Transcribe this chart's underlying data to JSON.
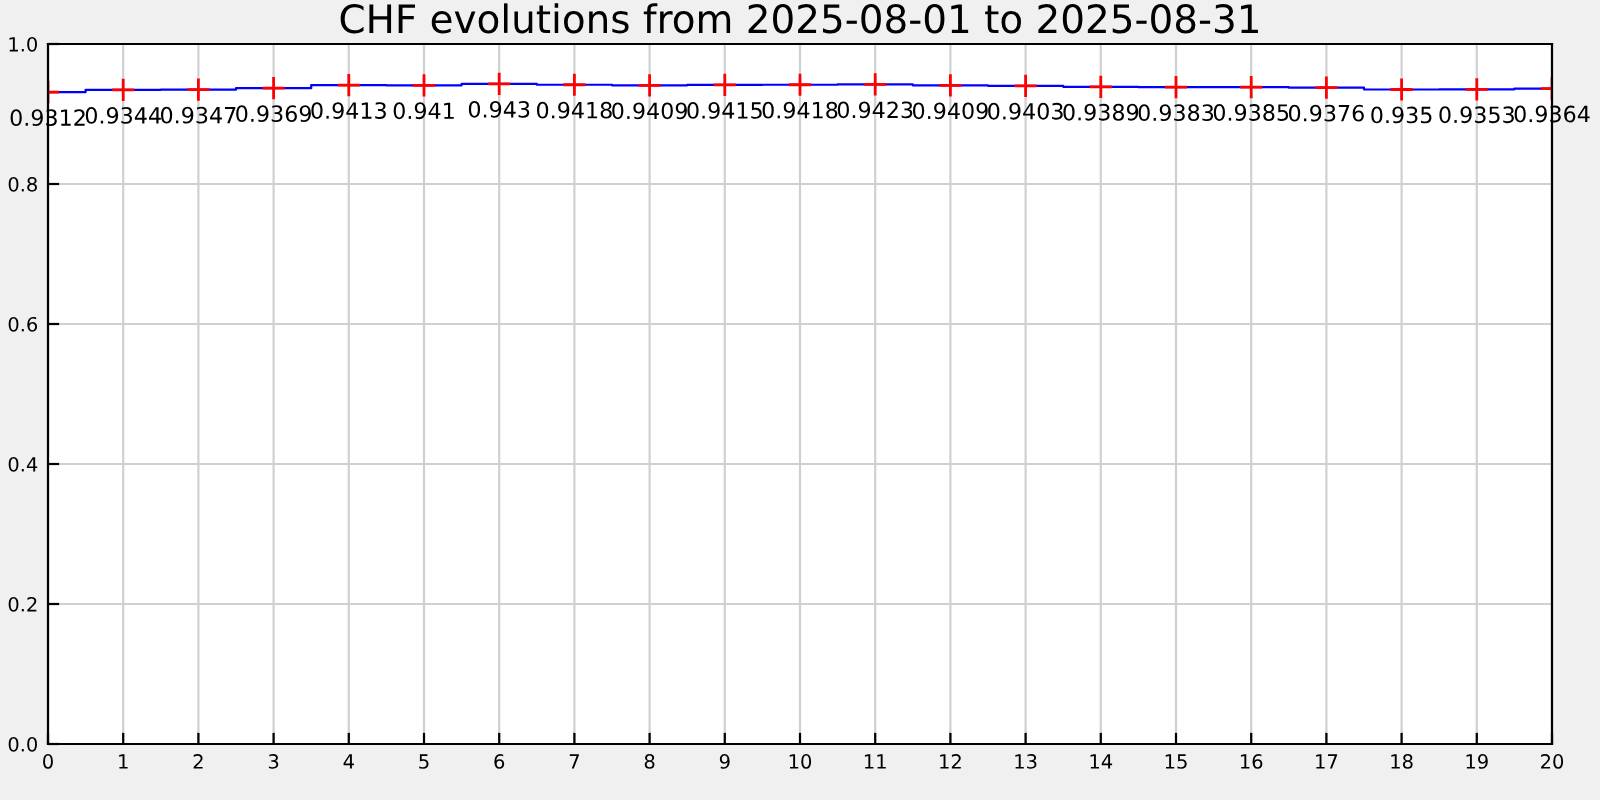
{
  "chart_data": {
    "type": "step",
    "title": "CHF evolutions from 2025-08-01 to 2025-08-31",
    "x": [
      0,
      1,
      2,
      3,
      4,
      5,
      6,
      7,
      8,
      9,
      10,
      11,
      12,
      13,
      14,
      15,
      16,
      17,
      18,
      19,
      20
    ],
    "series": [
      {
        "color": "#0000ff",
        "values": [
          0.9312,
          0.9344,
          0.9347,
          0.9369,
          0.9413,
          0.941,
          0.943,
          0.9418,
          0.9409,
          0.9415,
          0.9418,
          0.9423,
          0.9409,
          0.9403,
          0.9389,
          0.9383,
          0.9385,
          0.9376,
          0.935,
          0.9353,
          0.9364
        ]
      }
    ],
    "data_labels": true,
    "marker": "cross",
    "grid": true,
    "xlim": [
      0,
      20
    ],
    "xticks": [
      0,
      1,
      2,
      3,
      4,
      5,
      6,
      7,
      8,
      9,
      10,
      11,
      12,
      13,
      14,
      15,
      16,
      17,
      18,
      19,
      20
    ],
    "ylim": [
      0,
      1
    ],
    "yticks": [
      {
        "value": 0,
        "label": "0.0"
      },
      {
        "value": 0.2,
        "label": "0.2"
      },
      {
        "value": 0.4,
        "label": "0.4"
      },
      {
        "value": 0.6,
        "label": "0.6"
      },
      {
        "value": 0.8,
        "label": "0.8"
      },
      {
        "value": 1,
        "label": "1.0"
      }
    ]
  }
}
